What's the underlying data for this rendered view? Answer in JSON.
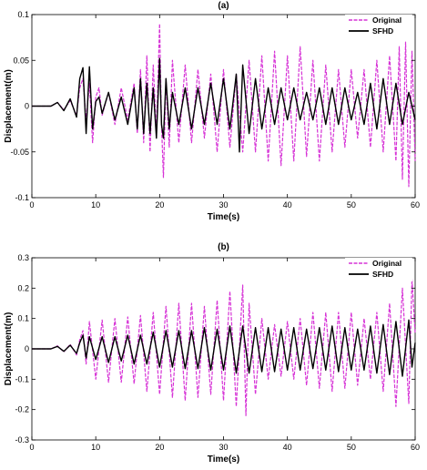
{
  "chart_data": [
    {
      "type": "line",
      "title": "(a)",
      "xlabel": "Time(s)",
      "ylabel": "Displacement(m)",
      "xlim": [
        0,
        60
      ],
      "ylim": [
        -0.1,
        0.1
      ],
      "xticks": [
        0,
        10,
        20,
        30,
        40,
        50,
        60
      ],
      "yticks": [
        -0.1,
        -0.05,
        0,
        0.05,
        0.1
      ],
      "ytick_labels": [
        "-0.1",
        "-0.05",
        "0",
        "0.05",
        "0.1"
      ],
      "legend": "top-right",
      "series": [
        {
          "name": "Original",
          "color": "#d633d6",
          "style": "dashed",
          "x": [
            0,
            3,
            4,
            5,
            6,
            7,
            7.5,
            8,
            8.5,
            9,
            9.5,
            10,
            10.5,
            11,
            12,
            13,
            14,
            15,
            16,
            16.5,
            17,
            17.5,
            18,
            18.5,
            19,
            19.5,
            20,
            20.3,
            20.6,
            21,
            21.5,
            22,
            23,
            24,
            25,
            26,
            27,
            28,
            29,
            30,
            31,
            32,
            33,
            34,
            35,
            36,
            37,
            38,
            39,
            40,
            41,
            42,
            43,
            44,
            45,
            46,
            47,
            48,
            49,
            50,
            51,
            52,
            53,
            54,
            55,
            56,
            57,
            57.5,
            58,
            58.5,
            59,
            59.5,
            60
          ],
          "y": [
            0,
            0,
            0.004,
            -0.004,
            0.006,
            -0.01,
            0.02,
            0.03,
            -0.015,
            0.025,
            -0.04,
            0.01,
            0.02,
            -0.01,
            0.015,
            -0.02,
            0.02,
            -0.015,
            0.025,
            -0.03,
            0.04,
            -0.04,
            0.055,
            -0.05,
            0.045,
            -0.03,
            0.09,
            -0.02,
            -0.078,
            0.03,
            -0.045,
            0.05,
            -0.04,
            0.045,
            -0.04,
            0.04,
            -0.035,
            0.035,
            -0.05,
            0.04,
            -0.045,
            0.035,
            -0.05,
            0.05,
            -0.05,
            0.055,
            -0.06,
            0.06,
            -0.065,
            0.055,
            -0.06,
            0.065,
            -0.055,
            0.05,
            -0.06,
            0.045,
            -0.05,
            0.04,
            -0.045,
            0.04,
            -0.035,
            0.04,
            -0.045,
            0.05,
            -0.05,
            0.055,
            -0.06,
            0.065,
            -0.08,
            0.07,
            -0.088,
            0.06,
            -0.06
          ]
        },
        {
          "name": "SFHD",
          "color": "#000000",
          "style": "solid",
          "x": [
            0,
            3,
            4,
            5,
            6,
            7,
            7.5,
            8,
            8.5,
            9,
            9.5,
            10,
            10.5,
            11,
            12,
            13,
            14,
            15,
            16,
            16.5,
            17,
            17.5,
            18,
            18.5,
            19,
            19.5,
            20,
            20.3,
            20.6,
            21,
            21.5,
            22,
            23,
            24,
            25,
            26,
            27,
            28,
            29,
            30,
            31,
            32,
            32.5,
            33,
            34,
            35,
            36,
            37,
            38,
            39,
            40,
            41,
            42,
            43,
            44,
            45,
            46,
            47,
            48,
            49,
            50,
            51,
            52,
            53,
            54,
            55,
            56,
            57,
            58,
            59,
            60
          ],
          "y": [
            0,
            0,
            0.004,
            -0.005,
            0.008,
            -0.012,
            0.03,
            0.042,
            -0.03,
            0.043,
            -0.025,
            0.005,
            0.01,
            -0.008,
            0.015,
            -0.015,
            0.01,
            -0.02,
            0.02,
            -0.025,
            0.03,
            -0.03,
            0.025,
            -0.03,
            0.02,
            -0.035,
            0.052,
            -0.02,
            -0.035,
            0.03,
            -0.025,
            0.015,
            -0.02,
            0.02,
            -0.025,
            0.02,
            -0.02,
            0.025,
            -0.02,
            0.03,
            -0.025,
            0.035,
            -0.05,
            0.045,
            -0.03,
            0.03,
            -0.025,
            0.02,
            -0.02,
            0.02,
            -0.015,
            0.02,
            -0.015,
            0.015,
            -0.015,
            0.02,
            -0.02,
            0.02,
            -0.02,
            0.02,
            -0.015,
            0.015,
            -0.02,
            0.025,
            -0.025,
            0.03,
            -0.02,
            0.025,
            -0.02,
            0.015,
            -0.015
          ]
        }
      ]
    },
    {
      "type": "line",
      "title": "(b)",
      "xlabel": "Time(s)",
      "ylabel": "Displacement(m)",
      "xlim": [
        0,
        60
      ],
      "ylim": [
        -0.3,
        0.3
      ],
      "xticks": [
        0,
        10,
        20,
        30,
        40,
        50,
        60
      ],
      "yticks": [
        -0.3,
        -0.2,
        -0.1,
        0,
        0.1,
        0.2,
        0.3
      ],
      "ytick_labels": [
        "-0.3",
        "-0.2",
        "-0.1",
        "0",
        "0.1",
        "0.2",
        "0.3"
      ],
      "legend": "top-right",
      "series": [
        {
          "name": "Original",
          "color": "#d633d6",
          "style": "dashed",
          "x": [
            0,
            3,
            4,
            5,
            6,
            7,
            7.5,
            8,
            8.5,
            9,
            10,
            11,
            12,
            13,
            14,
            15,
            16,
            17,
            18,
            19,
            20,
            21,
            22,
            23,
            24,
            25,
            26,
            27,
            28,
            29,
            30,
            31,
            32,
            33,
            33.5,
            34,
            35,
            36,
            37,
            38,
            39,
            40,
            41,
            42,
            43,
            44,
            45,
            46,
            47,
            48,
            49,
            50,
            51,
            52,
            53,
            54,
            55,
            56,
            57,
            58,
            59,
            59.5,
            60
          ],
          "y": [
            0,
            0,
            0.01,
            -0.01,
            0.015,
            -0.02,
            0.03,
            0.06,
            -0.05,
            0.09,
            -0.1,
            0.095,
            -0.11,
            0.1,
            -0.11,
            0.105,
            -0.115,
            0.11,
            -0.14,
            0.12,
            -0.15,
            0.14,
            -0.16,
            0.15,
            -0.17,
            0.15,
            -0.16,
            0.14,
            -0.15,
            0.16,
            -0.17,
            0.19,
            -0.19,
            0.21,
            -0.22,
            0.15,
            -0.15,
            0.1,
            -0.1,
            0.08,
            -0.09,
            0.09,
            -0.1,
            0.1,
            -0.12,
            0.12,
            -0.13,
            0.12,
            -0.14,
            0.12,
            -0.13,
            0.12,
            -0.12,
            0.1,
            -0.1,
            0.12,
            -0.14,
            0.15,
            -0.19,
            0.2,
            -0.18,
            0.23,
            0.05
          ]
        },
        {
          "name": "SFHD",
          "color": "#000000",
          "style": "solid",
          "x": [
            0,
            3,
            4,
            5,
            6,
            7,
            7.5,
            8,
            8.5,
            9,
            10,
            11,
            12,
            13,
            14,
            15,
            16,
            17,
            18,
            19,
            20,
            21,
            22,
            23,
            24,
            25,
            26,
            27,
            28,
            29,
            30,
            31,
            32,
            33,
            34,
            35,
            36,
            37,
            38,
            39,
            40,
            41,
            42,
            43,
            44,
            45,
            46,
            47,
            48,
            49,
            50,
            51,
            52,
            53,
            54,
            55,
            56,
            57,
            58,
            59,
            59.5,
            60
          ],
          "y": [
            0,
            0,
            0.008,
            -0.008,
            0.012,
            -0.015,
            0.02,
            0.045,
            -0.03,
            0.04,
            -0.035,
            0.04,
            -0.045,
            0.04,
            -0.04,
            0.045,
            -0.05,
            0.045,
            -0.05,
            0.055,
            -0.06,
            0.06,
            -0.06,
            0.06,
            -0.065,
            0.06,
            -0.065,
            0.07,
            -0.07,
            0.065,
            -0.07,
            0.075,
            -0.08,
            0.075,
            -0.08,
            0.07,
            -0.075,
            0.07,
            -0.075,
            0.065,
            -0.07,
            0.07,
            -0.07,
            0.065,
            -0.065,
            0.07,
            -0.07,
            0.075,
            -0.075,
            0.07,
            -0.07,
            0.065,
            -0.07,
            0.075,
            -0.08,
            0.08,
            -0.085,
            0.09,
            -0.09,
            0.095,
            -0.06,
            0.02
          ]
        }
      ]
    }
  ]
}
